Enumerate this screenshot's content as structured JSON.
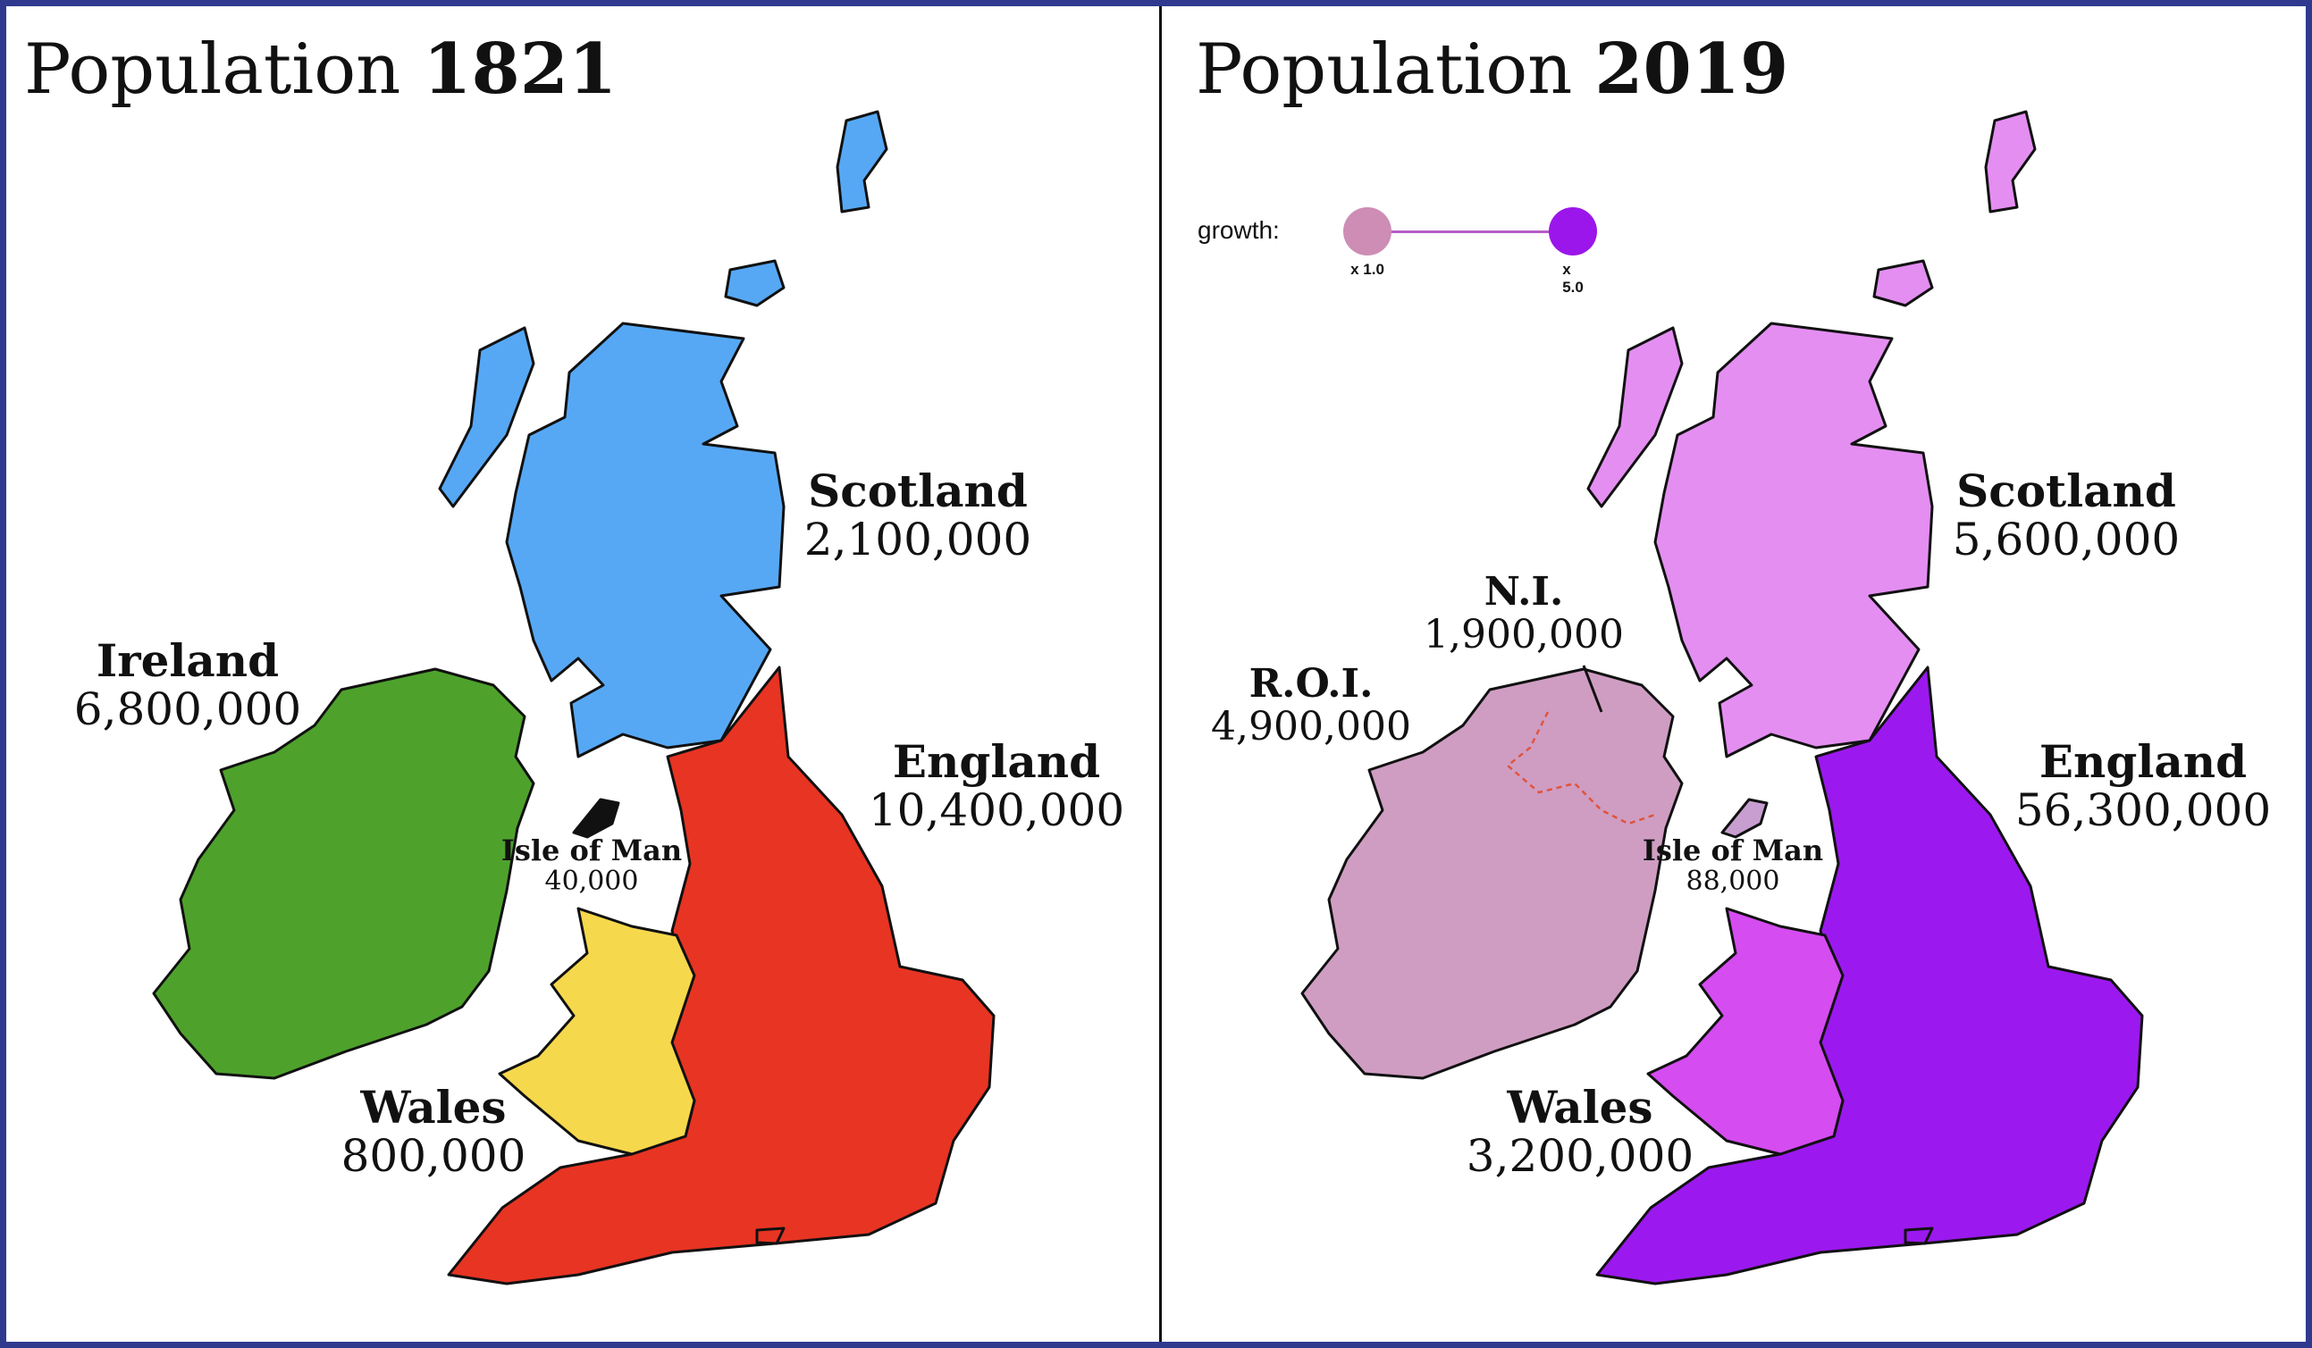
{
  "left_panel": {
    "title_prefix": "Population",
    "title_year": "1821",
    "regions": {
      "scotland": {
        "name": "Scotland",
        "population": "2,100,000",
        "color": "#56a8f5"
      },
      "ireland": {
        "name": "Ireland",
        "population": "6,800,000",
        "color": "#4ea22c"
      },
      "england": {
        "name": "England",
        "population": "10,400,000",
        "color": "#e83423"
      },
      "wales": {
        "name": "Wales",
        "population": "800,000",
        "color": "#f6d84c"
      },
      "isle_of_man": {
        "name": "Isle of Man",
        "population": "40,000",
        "color": "#111111"
      }
    }
  },
  "right_panel": {
    "title_prefix": "Population",
    "title_year": "2019",
    "legend": {
      "label": "growth:",
      "min_label": "x 1.0",
      "max_label": "x 5.0",
      "min_color": "#cd8db5",
      "max_color": "#9b16ea"
    },
    "regions": {
      "scotland": {
        "name": "Scotland",
        "population": "5,600,000",
        "color": "#e48ef2"
      },
      "ni": {
        "name": "N.I.",
        "population": "1,900,000",
        "color": "#cf9dc2"
      },
      "roi": {
        "name": "R.O.I.",
        "population": "4,900,000",
        "color": "#cf9dc2"
      },
      "england": {
        "name": "England",
        "population": "56,300,000",
        "color": "#9b19ee"
      },
      "wales": {
        "name": "Wales",
        "population": "3,200,000",
        "color": "#d54cf1"
      },
      "isle_of_man": {
        "name": "Isle of Man",
        "population": "88,000",
        "color": "#c89ed0"
      }
    }
  }
}
